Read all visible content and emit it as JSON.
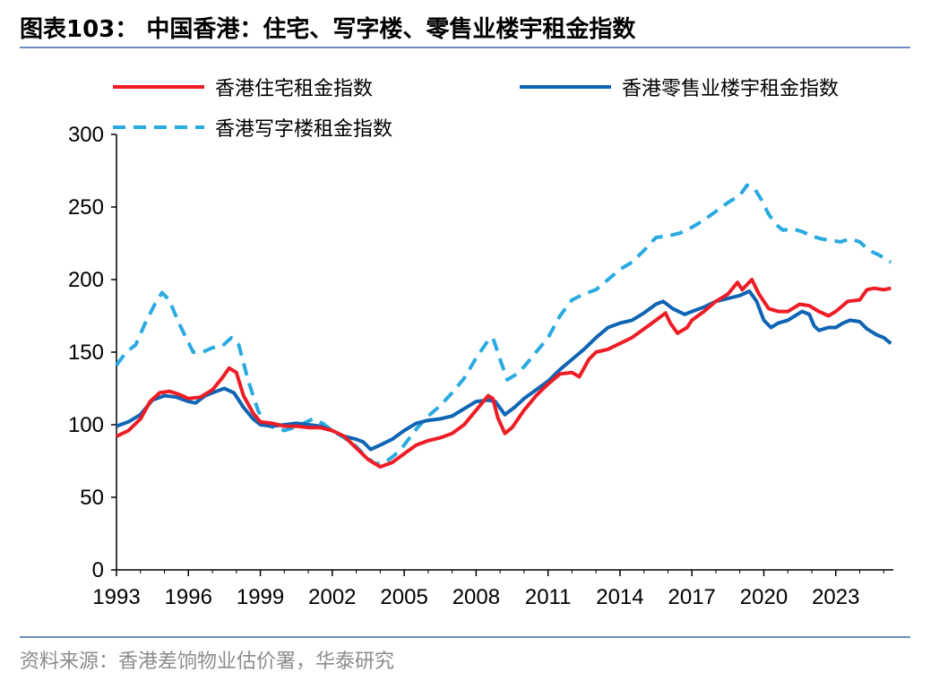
{
  "figure": {
    "title": "图表103： 中国香港：住宅、写字楼、零售业楼宇租金指数",
    "source": "资料来源：香港差饷物业估价署，华泰研究"
  },
  "chart_data": {
    "type": "line",
    "xlim": [
      1993,
      2025.4
    ],
    "ylim": [
      0,
      300
    ],
    "grid": false,
    "legend_placement": "top",
    "x_ticks": [
      "1993",
      "1996",
      "1999",
      "2002",
      "2005",
      "2008",
      "2011",
      "2014",
      "2017",
      "2020",
      "2023"
    ],
    "y_ticks": [
      "0",
      "50",
      "100",
      "150",
      "200",
      "250",
      "300"
    ],
    "series": [
      {
        "name": "香港住宅租金指数",
        "color": "#ee1c25",
        "style": "solid",
        "points": [
          [
            1993.0,
            92
          ],
          [
            1993.5,
            96
          ],
          [
            1994.0,
            104
          ],
          [
            1994.4,
            116
          ],
          [
            1994.8,
            122
          ],
          [
            1995.2,
            123
          ],
          [
            1995.6,
            121
          ],
          [
            1996.0,
            118
          ],
          [
            1996.5,
            119
          ],
          [
            1997.0,
            124
          ],
          [
            1997.4,
            132
          ],
          [
            1997.7,
            139
          ],
          [
            1998.0,
            136
          ],
          [
            1998.3,
            120
          ],
          [
            1998.7,
            108
          ],
          [
            1999.0,
            102
          ],
          [
            1999.5,
            101
          ],
          [
            2000.0,
            99
          ],
          [
            2000.5,
            99
          ],
          [
            2001.0,
            98
          ],
          [
            2001.5,
            98
          ],
          [
            2002.0,
            96
          ],
          [
            2002.5,
            92
          ],
          [
            2003.0,
            84
          ],
          [
            2003.5,
            76
          ],
          [
            2004.0,
            71
          ],
          [
            2004.5,
            74
          ],
          [
            2005.0,
            80
          ],
          [
            2005.5,
            86
          ],
          [
            2006.0,
            89
          ],
          [
            2006.5,
            91
          ],
          [
            2007.0,
            94
          ],
          [
            2007.5,
            100
          ],
          [
            2008.0,
            110
          ],
          [
            2008.5,
            120
          ],
          [
            2008.7,
            118
          ],
          [
            2008.9,
            105
          ],
          [
            2009.2,
            94
          ],
          [
            2009.5,
            98
          ],
          [
            2010.0,
            110
          ],
          [
            2010.5,
            120
          ],
          [
            2011.0,
            128
          ],
          [
            2011.5,
            135
          ],
          [
            2012.0,
            136
          ],
          [
            2012.3,
            133
          ],
          [
            2012.7,
            145
          ],
          [
            2013.0,
            150
          ],
          [
            2013.5,
            152
          ],
          [
            2014.0,
            156
          ],
          [
            2014.5,
            160
          ],
          [
            2015.0,
            166
          ],
          [
            2015.5,
            172
          ],
          [
            2015.9,
            177
          ],
          [
            2016.1,
            170
          ],
          [
            2016.4,
            163
          ],
          [
            2016.8,
            167
          ],
          [
            2017.0,
            172
          ],
          [
            2017.5,
            178
          ],
          [
            2018.0,
            185
          ],
          [
            2018.5,
            190
          ],
          [
            2018.9,
            198
          ],
          [
            2019.1,
            193
          ],
          [
            2019.5,
            200
          ],
          [
            2019.8,
            190
          ],
          [
            2020.2,
            180
          ],
          [
            2020.6,
            178
          ],
          [
            2021.0,
            178
          ],
          [
            2021.5,
            183
          ],
          [
            2021.9,
            182
          ],
          [
            2022.3,
            178
          ],
          [
            2022.7,
            175
          ],
          [
            2023.0,
            178
          ],
          [
            2023.5,
            185
          ],
          [
            2024.0,
            186
          ],
          [
            2024.3,
            193
          ],
          [
            2024.6,
            194
          ],
          [
            2025.0,
            193
          ],
          [
            2025.3,
            194
          ]
        ]
      },
      {
        "name": "香港零售业楼宇租金指数",
        "color": "#0f64b4",
        "style": "solid",
        "points": [
          [
            1993.0,
            99
          ],
          [
            1993.5,
            102
          ],
          [
            1994.0,
            107
          ],
          [
            1994.5,
            117
          ],
          [
            1995.0,
            120
          ],
          [
            1995.5,
            119
          ],
          [
            1996.0,
            116
          ],
          [
            1996.3,
            115
          ],
          [
            1996.7,
            120
          ],
          [
            1997.0,
            122
          ],
          [
            1997.5,
            125
          ],
          [
            1997.9,
            122
          ],
          [
            1998.3,
            112
          ],
          [
            1998.7,
            104
          ],
          [
            1999.0,
            100
          ],
          [
            1999.5,
            99
          ],
          [
            2000.0,
            100
          ],
          [
            2000.5,
            101
          ],
          [
            2001.0,
            100
          ],
          [
            2001.5,
            99
          ],
          [
            2002.0,
            96
          ],
          [
            2002.5,
            92
          ],
          [
            2003.0,
            90
          ],
          [
            2003.3,
            88
          ],
          [
            2003.6,
            83
          ],
          [
            2004.0,
            86
          ],
          [
            2004.5,
            90
          ],
          [
            2005.0,
            96
          ],
          [
            2005.5,
            101
          ],
          [
            2006.0,
            103
          ],
          [
            2006.5,
            104
          ],
          [
            2007.0,
            106
          ],
          [
            2007.5,
            111
          ],
          [
            2008.0,
            116
          ],
          [
            2008.5,
            117
          ],
          [
            2008.8,
            116
          ],
          [
            2009.2,
            107
          ],
          [
            2009.6,
            112
          ],
          [
            2010.0,
            118
          ],
          [
            2010.5,
            124
          ],
          [
            2011.0,
            130
          ],
          [
            2011.5,
            138
          ],
          [
            2012.0,
            145
          ],
          [
            2012.5,
            152
          ],
          [
            2013.0,
            160
          ],
          [
            2013.5,
            167
          ],
          [
            2014.0,
            170
          ],
          [
            2014.5,
            172
          ],
          [
            2015.0,
            177
          ],
          [
            2015.5,
            183
          ],
          [
            2015.8,
            185
          ],
          [
            2016.2,
            180
          ],
          [
            2016.7,
            176
          ],
          [
            2017.0,
            178
          ],
          [
            2017.5,
            181
          ],
          [
            2018.0,
            185
          ],
          [
            2018.5,
            187
          ],
          [
            2019.0,
            189
          ],
          [
            2019.4,
            192
          ],
          [
            2019.7,
            185
          ],
          [
            2020.0,
            172
          ],
          [
            2020.3,
            167
          ],
          [
            2020.6,
            170
          ],
          [
            2021.0,
            172
          ],
          [
            2021.3,
            175
          ],
          [
            2021.6,
            178
          ],
          [
            2021.9,
            176
          ],
          [
            2022.1,
            168
          ],
          [
            2022.3,
            165
          ],
          [
            2022.7,
            167
          ],
          [
            2023.0,
            167
          ],
          [
            2023.3,
            170
          ],
          [
            2023.6,
            172
          ],
          [
            2024.0,
            171
          ],
          [
            2024.3,
            166
          ],
          [
            2024.7,
            162
          ],
          [
            2025.0,
            160
          ],
          [
            2025.3,
            156
          ]
        ]
      },
      {
        "name": "香港写字楼租金指数",
        "color": "#29aae1",
        "style": "dashed",
        "points": [
          [
            1993.0,
            141
          ],
          [
            1993.4,
            150
          ],
          [
            1993.8,
            155
          ],
          [
            1994.2,
            170
          ],
          [
            1994.6,
            183
          ],
          [
            1994.9,
            191
          ],
          [
            1995.2,
            186
          ],
          [
            1995.6,
            170
          ],
          [
            1995.9,
            160
          ],
          [
            1996.2,
            150
          ],
          [
            1996.6,
            150
          ],
          [
            1997.0,
            153
          ],
          [
            1997.4,
            154
          ],
          [
            1997.8,
            160
          ],
          [
            1998.1,
            155
          ],
          [
            1998.5,
            130
          ],
          [
            1998.9,
            110
          ],
          [
            1999.2,
            100
          ],
          [
            1999.6,
            98
          ],
          [
            2000.0,
            96
          ],
          [
            2000.4,
            98
          ],
          [
            2000.8,
            101
          ],
          [
            2001.2,
            104
          ],
          [
            2001.6,
            101
          ],
          [
            2002.0,
            96
          ],
          [
            2002.5,
            91
          ],
          [
            2003.0,
            85
          ],
          [
            2003.4,
            78
          ],
          [
            2003.8,
            73
          ],
          [
            2004.2,
            74
          ],
          [
            2004.6,
            79
          ],
          [
            2005.0,
            86
          ],
          [
            2005.5,
            97
          ],
          [
            2006.0,
            106
          ],
          [
            2006.5,
            113
          ],
          [
            2007.0,
            122
          ],
          [
            2007.5,
            132
          ],
          [
            2008.0,
            146
          ],
          [
            2008.5,
            158
          ],
          [
            2008.7,
            160
          ],
          [
            2009.0,
            145
          ],
          [
            2009.3,
            131
          ],
          [
            2009.7,
            135
          ],
          [
            2010.0,
            140
          ],
          [
            2010.5,
            150
          ],
          [
            2011.0,
            160
          ],
          [
            2011.5,
            175
          ],
          [
            2012.0,
            186
          ],
          [
            2012.5,
            190
          ],
          [
            2013.0,
            193
          ],
          [
            2013.5,
            200
          ],
          [
            2014.0,
            207
          ],
          [
            2014.5,
            212
          ],
          [
            2015.0,
            220
          ],
          [
            2015.5,
            229
          ],
          [
            2016.0,
            230
          ],
          [
            2016.5,
            232
          ],
          [
            2017.0,
            236
          ],
          [
            2017.5,
            241
          ],
          [
            2018.0,
            247
          ],
          [
            2018.5,
            253
          ],
          [
            2019.0,
            258
          ],
          [
            2019.3,
            265
          ],
          [
            2019.6,
            263
          ],
          [
            2019.9,
            255
          ],
          [
            2020.2,
            245
          ],
          [
            2020.5,
            238
          ],
          [
            2020.8,
            234
          ],
          [
            2021.2,
            235
          ],
          [
            2021.6,
            233
          ],
          [
            2022.0,
            230
          ],
          [
            2022.4,
            228
          ],
          [
            2022.8,
            227
          ],
          [
            2023.2,
            226
          ],
          [
            2023.6,
            228
          ],
          [
            2024.0,
            226
          ],
          [
            2024.4,
            220
          ],
          [
            2024.8,
            217
          ],
          [
            2025.0,
            215
          ],
          [
            2025.3,
            212
          ]
        ]
      }
    ]
  }
}
